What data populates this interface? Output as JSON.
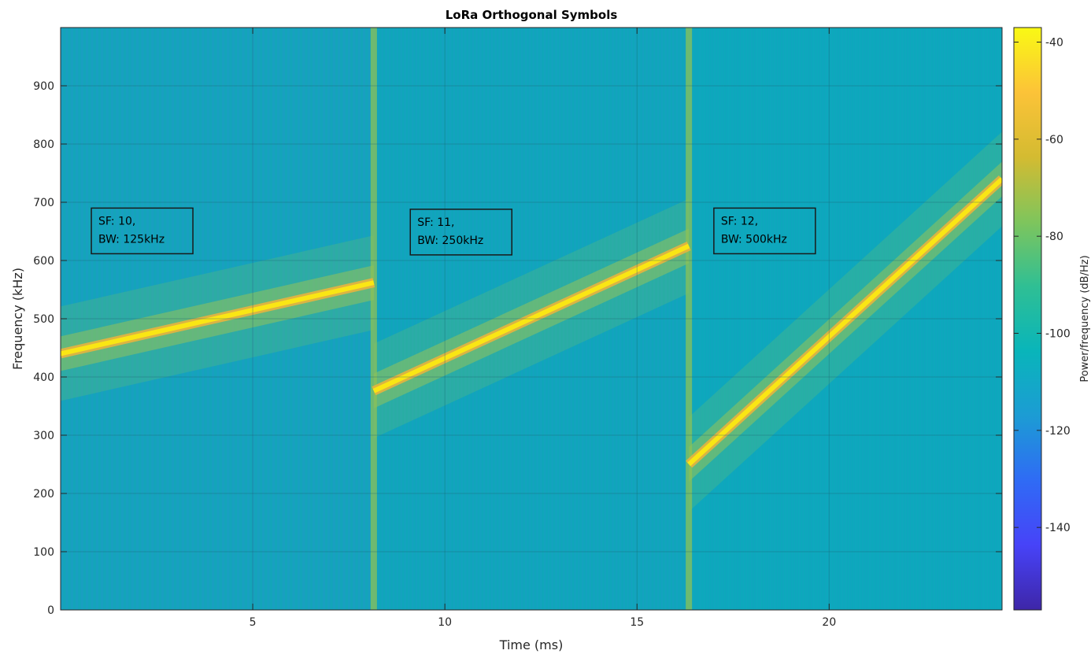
{
  "chart_data": {
    "type": "heatmap",
    "title": "LoRa Orthogonal Symbols",
    "xlabel": "Time (ms)",
    "ylabel": "Frequency (kHz)",
    "xlim": [
      0,
      24.5
    ],
    "ylim": [
      0,
      1000
    ],
    "xticks": [
      5,
      10,
      15,
      20
    ],
    "yticks": [
      0,
      100,
      200,
      300,
      400,
      500,
      600,
      700,
      800,
      900
    ],
    "grid": true,
    "colorbar": {
      "label": "Power/frequency (dB/Hz)",
      "range": [
        -157,
        -37
      ],
      "ticks": [
        -140,
        -120,
        -100,
        -80,
        -60,
        -40
      ],
      "colormap": [
        "#3e26a8",
        "#4743f8",
        "#2f6bf5",
        "#1c9cd4",
        "#09b5ba",
        "#2fbf94",
        "#7fc55c",
        "#d4bb31",
        "#fcc338",
        "#f9f914"
      ]
    },
    "background_color": "#0ea5bb",
    "chirp_color": "#fae614",
    "segments": [
      {
        "label_line1": "SF: 10,",
        "label_line2": "BW: 125kHz",
        "t_start": 0,
        "t_end": 8.15,
        "f_start": 440,
        "f_end": 562
      },
      {
        "label_line1": "SF: 11,",
        "label_line2": "BW: 250kHz",
        "t_start": 8.15,
        "t_end": 16.35,
        "f_start": 376,
        "f_end": 625
      },
      {
        "label_line1": "SF: 12,",
        "label_line2": "BW: 500kHz",
        "t_start": 16.35,
        "t_end": 24.5,
        "f_start": 250,
        "f_end": 740
      }
    ],
    "annotations": [
      {
        "t": 0.8,
        "f": 690
      },
      {
        "t": 9.1,
        "f": 688
      },
      {
        "t": 17.0,
        "f": 690
      }
    ]
  }
}
